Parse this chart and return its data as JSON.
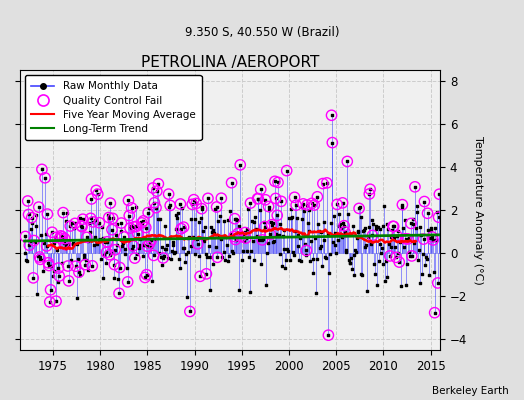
{
  "title": "PETROLINA /AEROPORT",
  "subtitle": "9.350 S, 40.550 W (Brazil)",
  "ylabel": "Temperature Anomaly (°C)",
  "credit": "Berkeley Earth",
  "ylim": [
    -4.5,
    8.5
  ],
  "yticks": [
    -4,
    -2,
    0,
    2,
    4,
    6,
    8
  ],
  "xlim": [
    1971.5,
    2016
  ],
  "xticks": [
    1975,
    1980,
    1985,
    1990,
    1995,
    2000,
    2005,
    2010,
    2015
  ],
  "bg_color": "#e0e0e0",
  "plot_bg_color": "#f0f0f0",
  "raw_line_color": "#4444ff",
  "raw_marker_color": "black",
  "qc_fail_color": "magenta",
  "moving_avg_color": "red",
  "trend_color": "green",
  "grid_color": "#cccccc",
  "seed": 12345
}
